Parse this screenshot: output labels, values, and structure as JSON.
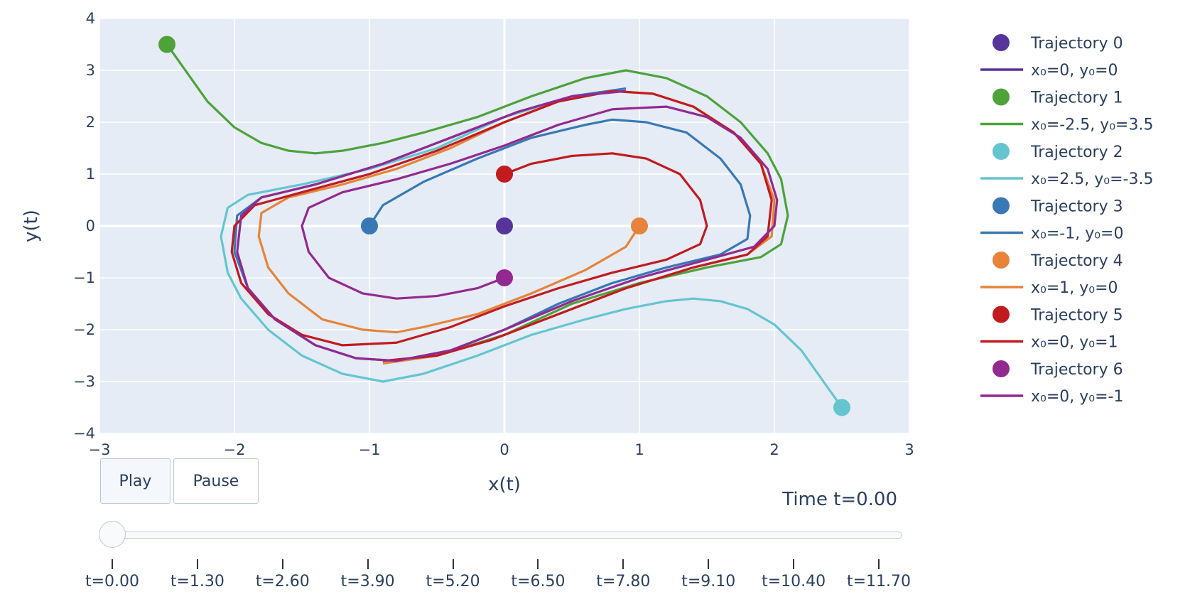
{
  "chart_data": {
    "type": "scatter",
    "xlabel": "x(t)",
    "ylabel": "y(t)",
    "xlim": [
      -3,
      3
    ],
    "ylim": [
      -4,
      4
    ],
    "xticks": [
      -3,
      -2,
      -1,
      0,
      1,
      2,
      3
    ],
    "yticks": [
      -4,
      -3,
      -2,
      -1,
      0,
      1,
      2,
      3,
      4
    ],
    "grid": true,
    "legend_position": "right",
    "series": [
      {
        "marker_name": "Trajectory 0",
        "line_name": "x₀=0, y₀=0",
        "color": "#56359a",
        "start": [
          0,
          0
        ],
        "path": [
          [
            0,
            0
          ]
        ]
      },
      {
        "marker_name": "Trajectory 1",
        "line_name": "x₀=-2.5, y₀=3.5",
        "color": "#4da23a",
        "start": [
          -2.5,
          3.5
        ],
        "path": [
          [
            -2.5,
            3.5
          ],
          [
            -2.2,
            2.4
          ],
          [
            -2.0,
            1.9
          ],
          [
            -1.8,
            1.6
          ],
          [
            -1.6,
            1.45
          ],
          [
            -1.4,
            1.4
          ],
          [
            -1.2,
            1.45
          ],
          [
            -0.9,
            1.6
          ],
          [
            -0.6,
            1.8
          ],
          [
            -0.2,
            2.1
          ],
          [
            0.2,
            2.5
          ],
          [
            0.6,
            2.85
          ],
          [
            0.9,
            3.0
          ],
          [
            1.2,
            2.85
          ],
          [
            1.5,
            2.5
          ],
          [
            1.75,
            2.0
          ],
          [
            1.95,
            1.4
          ],
          [
            2.05,
            0.9
          ],
          [
            2.1,
            0.2
          ],
          [
            2.05,
            -0.35
          ],
          [
            1.9,
            -0.6
          ],
          [
            1.5,
            -0.8
          ],
          [
            1.0,
            -1.1
          ],
          [
            0.5,
            -1.5
          ],
          [
            0.0,
            -2.1
          ],
          [
            -0.5,
            -2.5
          ],
          [
            -0.9,
            -2.65
          ]
        ]
      },
      {
        "marker_name": "Trajectory 2",
        "line_name": "x₀=2.5, y₀=-3.5",
        "color": "#65c5cf",
        "start": [
          2.5,
          -3.5
        ],
        "path": [
          [
            2.5,
            -3.5
          ],
          [
            2.2,
            -2.4
          ],
          [
            2.0,
            -1.9
          ],
          [
            1.8,
            -1.6
          ],
          [
            1.6,
            -1.45
          ],
          [
            1.4,
            -1.4
          ],
          [
            1.2,
            -1.45
          ],
          [
            0.9,
            -1.6
          ],
          [
            0.6,
            -1.8
          ],
          [
            0.2,
            -2.1
          ],
          [
            -0.2,
            -2.5
          ],
          [
            -0.6,
            -2.85
          ],
          [
            -0.9,
            -3.0
          ],
          [
            -1.2,
            -2.85
          ],
          [
            -1.5,
            -2.5
          ],
          [
            -1.75,
            -2.0
          ],
          [
            -1.95,
            -1.4
          ],
          [
            -2.05,
            -0.9
          ],
          [
            -2.1,
            -0.2
          ],
          [
            -2.05,
            0.35
          ],
          [
            -1.9,
            0.6
          ],
          [
            -1.5,
            0.8
          ],
          [
            -1.0,
            1.1
          ],
          [
            -0.5,
            1.5
          ],
          [
            0.0,
            2.1
          ],
          [
            0.5,
            2.5
          ],
          [
            0.9,
            2.65
          ]
        ]
      },
      {
        "marker_name": "Trajectory 3",
        "line_name": "x₀=-1, y₀=0",
        "color": "#3878b4",
        "start": [
          -1,
          0
        ],
        "path": [
          [
            -1,
            0
          ],
          [
            -0.9,
            0.4
          ],
          [
            -0.6,
            0.85
          ],
          [
            -0.2,
            1.3
          ],
          [
            0.2,
            1.7
          ],
          [
            0.6,
            1.95
          ],
          [
            0.8,
            2.05
          ],
          [
            1.05,
            2.0
          ],
          [
            1.35,
            1.8
          ],
          [
            1.6,
            1.3
          ],
          [
            1.75,
            0.8
          ],
          [
            1.82,
            0.2
          ],
          [
            1.8,
            -0.25
          ],
          [
            1.6,
            -0.55
          ],
          [
            1.2,
            -0.8
          ],
          [
            0.8,
            -1.1
          ],
          [
            0.4,
            -1.5
          ],
          [
            0.0,
            -2.0
          ],
          [
            -0.4,
            -2.4
          ],
          [
            -0.8,
            -2.6
          ],
          [
            -1.1,
            -2.55
          ],
          [
            -1.4,
            -2.3
          ],
          [
            -1.7,
            -1.8
          ],
          [
            -1.9,
            -1.2
          ],
          [
            -2.0,
            -0.5
          ],
          [
            -1.98,
            0.2
          ],
          [
            -1.8,
            0.55
          ],
          [
            -1.4,
            0.8
          ],
          [
            -0.9,
            1.2
          ],
          [
            -0.4,
            1.7
          ],
          [
            0.1,
            2.2
          ],
          [
            0.5,
            2.5
          ],
          [
            0.9,
            2.65
          ]
        ]
      },
      {
        "marker_name": "Trajectory 4",
        "line_name": "x₀=1, y₀=0",
        "color": "#e5843a",
        "start": [
          1,
          0
        ],
        "path": [
          [
            1,
            0
          ],
          [
            0.9,
            -0.4
          ],
          [
            0.6,
            -0.85
          ],
          [
            0.2,
            -1.3
          ],
          [
            -0.2,
            -1.7
          ],
          [
            -0.6,
            -1.95
          ],
          [
            -0.8,
            -2.05
          ],
          [
            -1.05,
            -2.0
          ],
          [
            -1.35,
            -1.8
          ],
          [
            -1.6,
            -1.3
          ],
          [
            -1.75,
            -0.8
          ],
          [
            -1.82,
            -0.2
          ],
          [
            -1.8,
            0.25
          ],
          [
            -1.6,
            0.55
          ],
          [
            -1.2,
            0.8
          ],
          [
            -0.8,
            1.1
          ],
          [
            -0.4,
            1.5
          ],
          [
            0.0,
            2.0
          ],
          [
            0.4,
            2.4
          ],
          [
            0.8,
            2.6
          ],
          [
            1.1,
            2.55
          ],
          [
            1.4,
            2.3
          ],
          [
            1.7,
            1.8
          ],
          [
            1.9,
            1.2
          ],
          [
            2.0,
            0.5
          ],
          [
            1.98,
            -0.2
          ],
          [
            1.8,
            -0.55
          ],
          [
            1.4,
            -0.8
          ],
          [
            0.9,
            -1.2
          ],
          [
            0.4,
            -1.7
          ],
          [
            -0.1,
            -2.2
          ],
          [
            -0.5,
            -2.5
          ],
          [
            -0.9,
            -2.65
          ]
        ]
      },
      {
        "marker_name": "Trajectory 5",
        "line_name": "x₀=0, y₀=1",
        "color": "#c11a1f",
        "start": [
          0,
          1
        ],
        "path": [
          [
            0,
            1
          ],
          [
            0.2,
            1.2
          ],
          [
            0.5,
            1.35
          ],
          [
            0.8,
            1.4
          ],
          [
            1.05,
            1.3
          ],
          [
            1.3,
            1.0
          ],
          [
            1.45,
            0.5
          ],
          [
            1.5,
            0.0
          ],
          [
            1.45,
            -0.35
          ],
          [
            1.2,
            -0.65
          ],
          [
            0.8,
            -0.9
          ],
          [
            0.4,
            -1.2
          ],
          [
            0.0,
            -1.55
          ],
          [
            -0.4,
            -1.95
          ],
          [
            -0.8,
            -2.25
          ],
          [
            -1.2,
            -2.3
          ],
          [
            -1.5,
            -2.1
          ],
          [
            -1.75,
            -1.7
          ],
          [
            -1.95,
            -1.1
          ],
          [
            -2.02,
            -0.5
          ],
          [
            -2.0,
            0.0
          ],
          [
            -1.85,
            0.4
          ],
          [
            -1.5,
            0.65
          ],
          [
            -1.0,
            1.0
          ],
          [
            -0.5,
            1.45
          ],
          [
            0.0,
            2.0
          ],
          [
            0.4,
            2.4
          ],
          [
            0.8,
            2.6
          ],
          [
            1.1,
            2.55
          ],
          [
            1.4,
            2.3
          ],
          [
            1.7,
            1.8
          ],
          [
            1.9,
            1.2
          ],
          [
            1.98,
            0.5
          ],
          [
            1.95,
            -0.2
          ],
          [
            1.8,
            -0.55
          ],
          [
            1.4,
            -0.8
          ],
          [
            0.9,
            -1.2
          ],
          [
            0.4,
            -1.7
          ],
          [
            -0.1,
            -2.2
          ],
          [
            -0.5,
            -2.5
          ],
          [
            -0.9,
            -2.6
          ]
        ]
      },
      {
        "marker_name": "Trajectory 6",
        "line_name": "x₀=0, y₀=-1",
        "color": "#93298f",
        "start": [
          0,
          -1
        ],
        "path": [
          [
            0,
            -1
          ],
          [
            -0.2,
            -1.2
          ],
          [
            -0.5,
            -1.35
          ],
          [
            -0.8,
            -1.4
          ],
          [
            -1.05,
            -1.3
          ],
          [
            -1.3,
            -1.0
          ],
          [
            -1.45,
            -0.5
          ],
          [
            -1.5,
            0.0
          ],
          [
            -1.45,
            0.35
          ],
          [
            -1.2,
            0.65
          ],
          [
            -0.8,
            0.9
          ],
          [
            -0.4,
            1.2
          ],
          [
            0.0,
            1.55
          ],
          [
            0.4,
            1.95
          ],
          [
            0.8,
            2.25
          ],
          [
            1.2,
            2.3
          ],
          [
            1.5,
            2.1
          ],
          [
            1.75,
            1.7
          ],
          [
            1.95,
            1.1
          ],
          [
            2.02,
            0.5
          ],
          [
            2.0,
            0.0
          ],
          [
            1.85,
            -0.4
          ],
          [
            1.5,
            -0.65
          ],
          [
            1.0,
            -1.0
          ],
          [
            0.5,
            -1.45
          ],
          [
            0.0,
            -2.0
          ],
          [
            -0.4,
            -2.4
          ],
          [
            -0.8,
            -2.6
          ],
          [
            -1.1,
            -2.55
          ],
          [
            -1.4,
            -2.3
          ],
          [
            -1.7,
            -1.8
          ],
          [
            -1.9,
            -1.2
          ],
          [
            -1.98,
            -0.5
          ],
          [
            -1.95,
            0.2
          ],
          [
            -1.8,
            0.55
          ],
          [
            -1.4,
            0.8
          ],
          [
            -0.9,
            1.2
          ],
          [
            -0.4,
            1.7
          ],
          [
            0.1,
            2.2
          ],
          [
            0.5,
            2.5
          ],
          [
            0.9,
            2.6
          ]
        ]
      }
    ]
  },
  "controls": {
    "play_label": "Play",
    "pause_label": "Pause",
    "time_label": "Time t=0.00",
    "slider_value": 0,
    "slider_steps": [
      "t=0.00",
      "t=1.30",
      "t=2.60",
      "t=3.90",
      "t=5.20",
      "t=6.50",
      "t=7.80",
      "t=9.10",
      "t=10.40",
      "t=11.70"
    ]
  },
  "colors": {
    "plot_bg": "#e5ecf6",
    "grid": "#ffffff",
    "text": "#2a3f5f"
  }
}
